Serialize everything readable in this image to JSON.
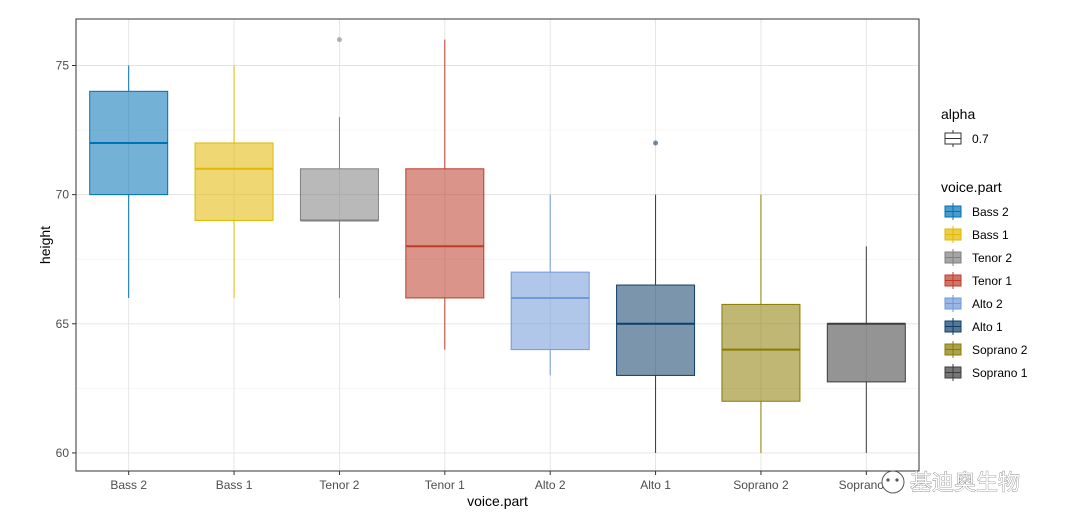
{
  "chart_data": {
    "type": "boxplot",
    "xlabel": "voice.part",
    "ylabel": "height",
    "ylim": [
      59.3,
      76.8
    ],
    "yticks": [
      60,
      65,
      70,
      75
    ],
    "grid": true,
    "legend_placement": "right",
    "categories": [
      "Bass 2",
      "Bass 1",
      "Tenor 2",
      "Tenor 1",
      "Alto 2",
      "Alto 1",
      "Soprano 2",
      "Soprano 1"
    ],
    "boxes": [
      {
        "name": "Bass 2",
        "min": 66,
        "q1": 70,
        "median": 72,
        "q3": 74,
        "max": 75,
        "outliers": [],
        "color": "#0072B5"
      },
      {
        "name": "Bass 1",
        "min": 66,
        "q1": 69,
        "median": 71,
        "q3": 72,
        "max": 75,
        "outliers": [],
        "color": "#E2B800"
      },
      {
        "name": "Tenor 2",
        "min": 66,
        "q1": 69,
        "median": 69,
        "q3": 71,
        "max": 73,
        "outliers": [
          76
        ],
        "color": "#808080"
      },
      {
        "name": "Tenor 1",
        "min": 64,
        "q1": 66,
        "median": 68,
        "q3": 71,
        "max": 76,
        "outliers": [],
        "color": "#BC3C29"
      },
      {
        "name": "Alto 2",
        "min": 63,
        "q1": 64,
        "median": 66,
        "q3": 67,
        "max": 70,
        "outliers": [],
        "color": "#6F99D8"
      },
      {
        "name": "Alto 1",
        "min": 60,
        "q1": 63,
        "median": 65,
        "q3": 66.5,
        "max": 70,
        "outliers": [
          72
        ],
        "color": "#0F3F68"
      },
      {
        "name": "Soprano 2",
        "min": 60,
        "q1": 62,
        "median": 64,
        "q3": 65.75,
        "max": 70,
        "outliers": [],
        "color": "#8A7B00"
      },
      {
        "name": "Soprano 1",
        "min": 60,
        "q1": 62.75,
        "median": 65,
        "q3": 65,
        "max": 68,
        "outliers": [],
        "color": "#3C3C3C"
      }
    ],
    "legends": [
      {
        "title": "alpha",
        "items": [
          {
            "label": "0.7"
          }
        ]
      },
      {
        "title": "voice.part",
        "items": [
          {
            "label": "Bass 2"
          },
          {
            "label": "Bass 1"
          },
          {
            "label": "Tenor 2"
          },
          {
            "label": "Tenor 1"
          },
          {
            "label": "Alto 2"
          },
          {
            "label": "Alto 1"
          },
          {
            "label": "Soprano 2"
          },
          {
            "label": "Soprano 1"
          }
        ]
      }
    ]
  },
  "watermark": {
    "text": "基迪奥生物"
  }
}
